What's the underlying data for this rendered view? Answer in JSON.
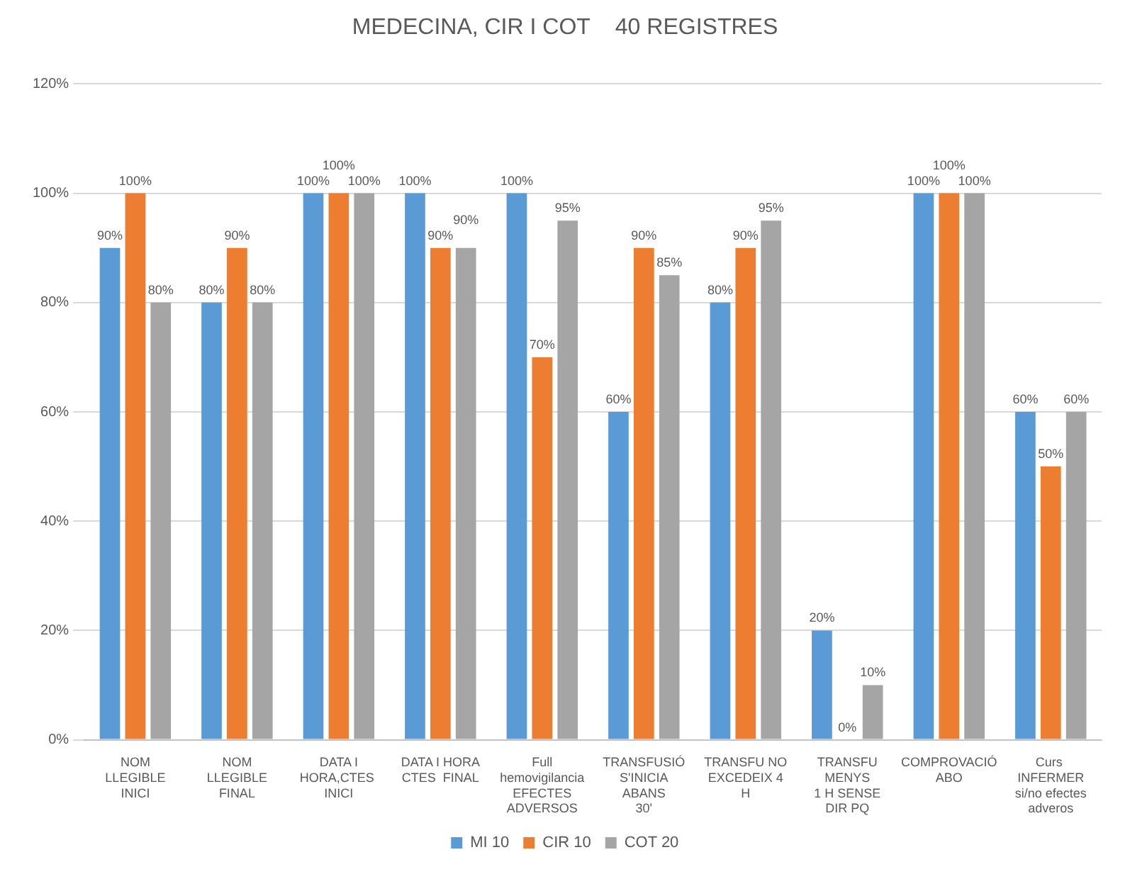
{
  "chart_data": {
    "type": "bar",
    "title": "MEDECINA, CIR I COT    40 REGISTRES",
    "categories": [
      "NOM LLEGIBLE\nINICI",
      "NOM LLEGIBLE\nFINAL",
      "DATA I\nHORA,CTES  INICI",
      "DATA I HORA\nCTES  FINAL",
      "Full\nhemovigilancia\nEFECTES\nADVERSOS",
      "TRANSFUSIÓ\nS'INICIA ABANS\n30'",
      "TRANSFU NO\nEXCEDEIX 4 H",
      "TRANSFU MENYS\n1 H SENSE DIR PQ",
      "COMPROVACIÓ\nABO",
      "Curs  INFERMER\nsi/no efectes\nadveros"
    ],
    "series": [
      {
        "name": "MI 10",
        "color": "#5b9bd5",
        "values": [
          90,
          80,
          100,
          100,
          100,
          60,
          80,
          20,
          100,
          60
        ],
        "value_labels": [
          "90%",
          "80%",
          "100%",
          "100%",
          "100%",
          "60%",
          "80%",
          "20%",
          "100%",
          "60%"
        ]
      },
      {
        "name": "CIR 10",
        "color": "#ed7d31",
        "values": [
          100,
          90,
          100,
          90,
          70,
          90,
          90,
          0,
          100,
          50
        ],
        "value_labels": [
          "100%",
          "90%",
          "100%",
          "90%",
          "70%",
          "90%",
          "90%",
          "0%",
          "100%",
          "50%"
        ]
      },
      {
        "name": "COT 20",
        "color": "#a5a5a5",
        "values": [
          80,
          80,
          100,
          90,
          95,
          85,
          95,
          10,
          100,
          60
        ],
        "value_labels": [
          "80%",
          "80%",
          "100%",
          "90%",
          "95%",
          "85%",
          "95%",
          "10%",
          "100%",
          "60%"
        ]
      }
    ],
    "ylim": [
      0,
      120
    ],
    "yticks": [
      {
        "value": 0,
        "label": "0%"
      },
      {
        "value": 20,
        "label": "20%"
      },
      {
        "value": 40,
        "label": "40%"
      },
      {
        "value": 60,
        "label": "60%"
      },
      {
        "value": 80,
        "label": "80%"
      },
      {
        "value": 100,
        "label": "100%"
      },
      {
        "value": 120,
        "label": "120%"
      }
    ],
    "grid": "y",
    "legend": "bottom"
  }
}
